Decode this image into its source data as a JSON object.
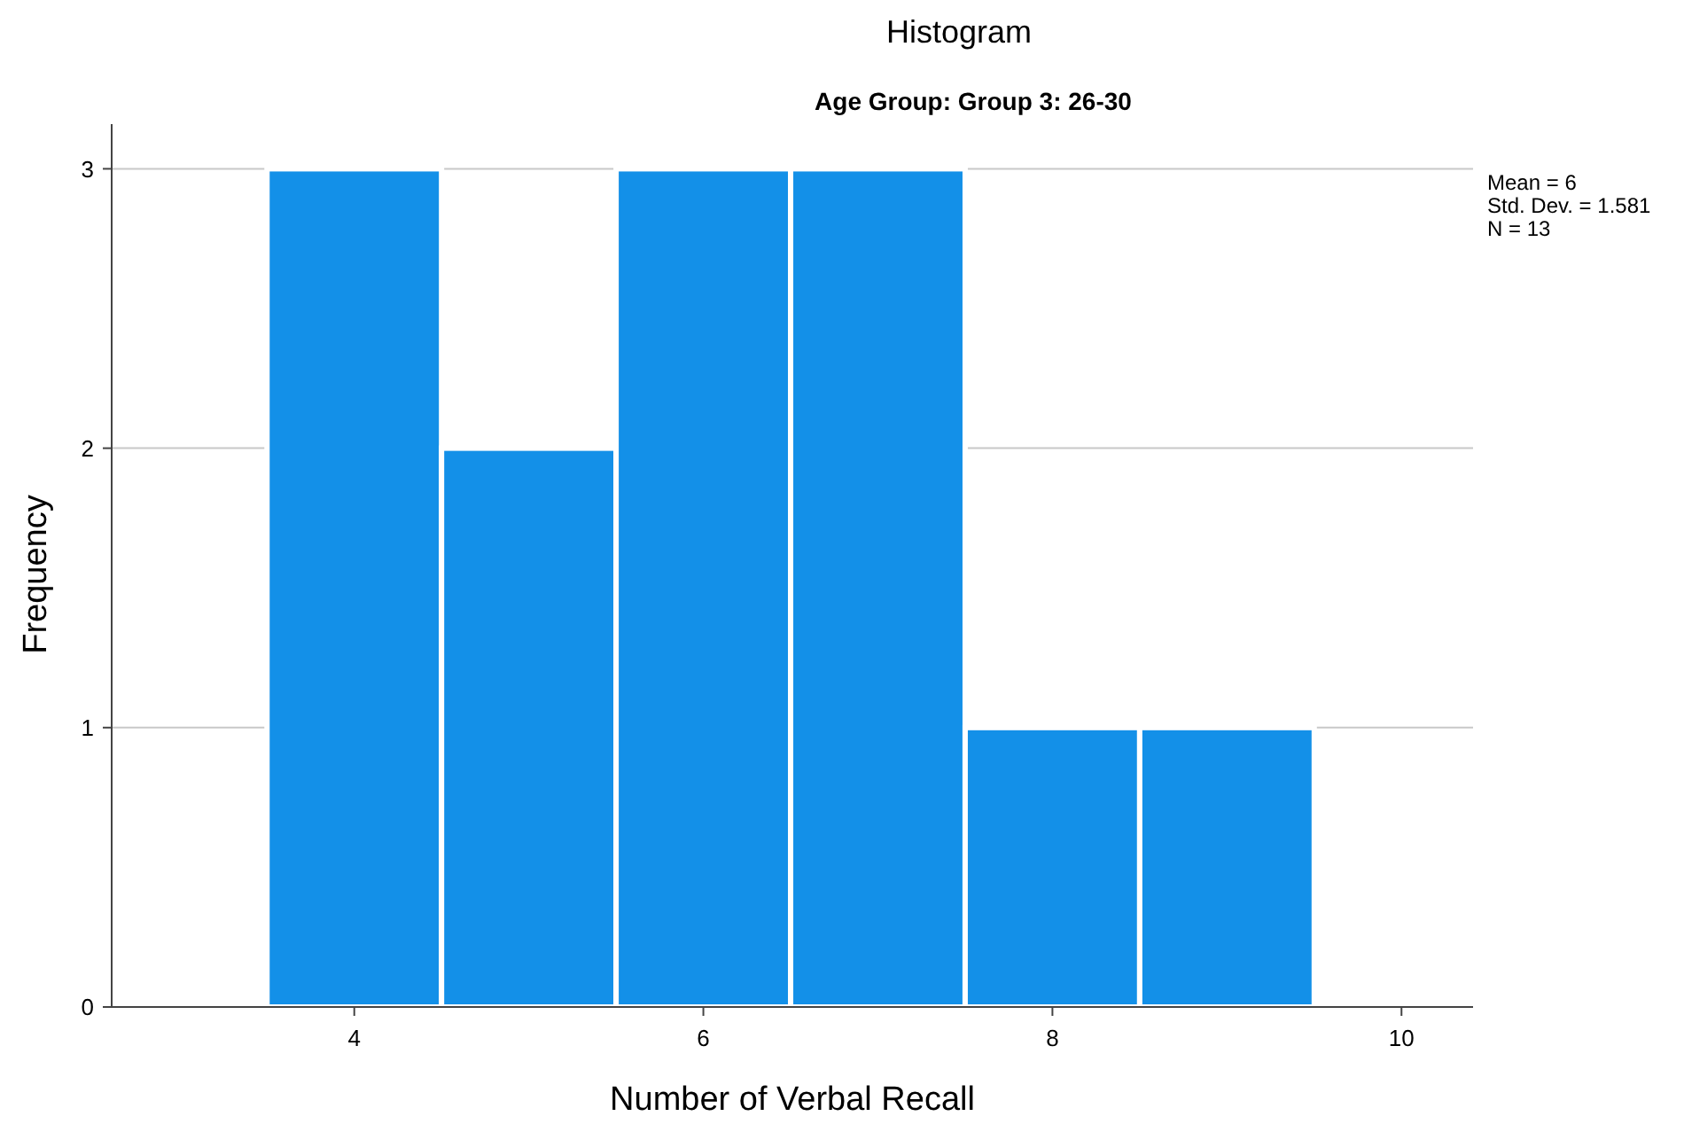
{
  "chart_data": {
    "type": "histogram",
    "title": "Histogram",
    "subtitle": "Age Group: Group 3: 26-30",
    "xlabel": "Number of Verbal Recall",
    "ylabel": "Frequency",
    "bins": [
      3.5,
      4.5,
      5.5,
      6.5,
      7.5,
      8.5,
      9.5
    ],
    "values": [
      3,
      2,
      3,
      3,
      1,
      1
    ],
    "color": "#1390e8",
    "xlim": [
      2.61,
      10.41
    ],
    "xticks": [
      4,
      6,
      8,
      10
    ],
    "ylim": [
      0,
      3.16
    ],
    "yticks": [
      0,
      1,
      2,
      3
    ],
    "grid": "y",
    "annotations": [
      "Mean = 6",
      "Std. Dev. = 1.581",
      "N = 13"
    ]
  }
}
